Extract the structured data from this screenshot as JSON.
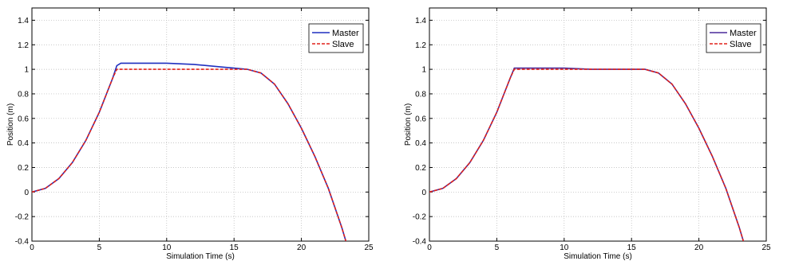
{
  "chart_data": [
    {
      "type": "line",
      "title": "",
      "xlabel": "Simulation Time (s)",
      "ylabel": "Position (m)",
      "xlim": [
        0,
        25
      ],
      "ylim": [
        -0.4,
        1.5
      ],
      "xticks": [
        0,
        5,
        10,
        15,
        20,
        25
      ],
      "yticks": [
        -0.4,
        -0.2,
        0,
        0.2,
        0.4,
        0.6,
        0.8,
        1,
        1.2,
        1.4
      ],
      "grid": true,
      "legend": "top-right",
      "series": [
        {
          "name": "Master",
          "color": "#1f2fbf",
          "dash": "solid",
          "x": [
            0,
            1,
            2,
            3,
            4,
            5,
            6,
            6.3,
            6.6,
            8,
            10,
            12,
            14,
            15,
            16,
            17,
            18,
            19,
            20,
            21,
            22,
            23,
            23.3
          ],
          "y": [
            0,
            0.03,
            0.11,
            0.24,
            0.42,
            0.65,
            0.93,
            1.03,
            1.05,
            1.05,
            1.05,
            1.04,
            1.02,
            1.01,
            1.0,
            0.97,
            0.88,
            0.72,
            0.52,
            0.29,
            0.03,
            -0.29,
            -0.4
          ]
        },
        {
          "name": "Slave",
          "color": "#e0201a",
          "dash": "dashed",
          "x": [
            0,
            1,
            2,
            3,
            4,
            5,
            6,
            6.3,
            8,
            10,
            12,
            14,
            15,
            16,
            17,
            18,
            19,
            20,
            21,
            22,
            23,
            23.3
          ],
          "y": [
            0,
            0.03,
            0.11,
            0.24,
            0.42,
            0.65,
            0.93,
            1.0,
            1.0,
            1.0,
            1.0,
            1.0,
            1.0,
            1.0,
            0.97,
            0.88,
            0.72,
            0.52,
            0.29,
            0.03,
            -0.29,
            -0.4
          ]
        }
      ]
    },
    {
      "type": "line",
      "title": "",
      "xlabel": "Simulation Time (s)",
      "ylabel": "Position (m)",
      "xlim": [
        0,
        25
      ],
      "ylim": [
        -0.4,
        1.5
      ],
      "xticks": [
        0,
        5,
        10,
        15,
        20,
        25
      ],
      "yticks": [
        -0.4,
        -0.2,
        0,
        0.2,
        0.4,
        0.6,
        0.8,
        1,
        1.2,
        1.4
      ],
      "grid": true,
      "legend": "top-right",
      "series": [
        {
          "name": "Master",
          "color": "#4a2a9a",
          "dash": "solid",
          "x": [
            0,
            1,
            2,
            3,
            4,
            5,
            6,
            6.3,
            8,
            10,
            12,
            14,
            15,
            16,
            17,
            18,
            19,
            20,
            21,
            22,
            23,
            23.3
          ],
          "y": [
            0,
            0.03,
            0.11,
            0.24,
            0.42,
            0.65,
            0.93,
            1.01,
            1.01,
            1.01,
            1.0,
            1.0,
            1.0,
            1.0,
            0.97,
            0.88,
            0.72,
            0.52,
            0.29,
            0.03,
            -0.29,
            -0.4
          ]
        },
        {
          "name": "Slave",
          "color": "#e0201a",
          "dash": "dashed",
          "x": [
            0,
            1,
            2,
            3,
            4,
            5,
            6,
            6.3,
            8,
            10,
            12,
            14,
            15,
            16,
            17,
            18,
            19,
            20,
            21,
            22,
            23,
            23.3
          ],
          "y": [
            0,
            0.03,
            0.11,
            0.24,
            0.42,
            0.65,
            0.93,
            1.0,
            1.0,
            1.0,
            1.0,
            1.0,
            1.0,
            1.0,
            0.97,
            0.88,
            0.72,
            0.52,
            0.29,
            0.03,
            -0.29,
            -0.4
          ]
        }
      ]
    }
  ]
}
